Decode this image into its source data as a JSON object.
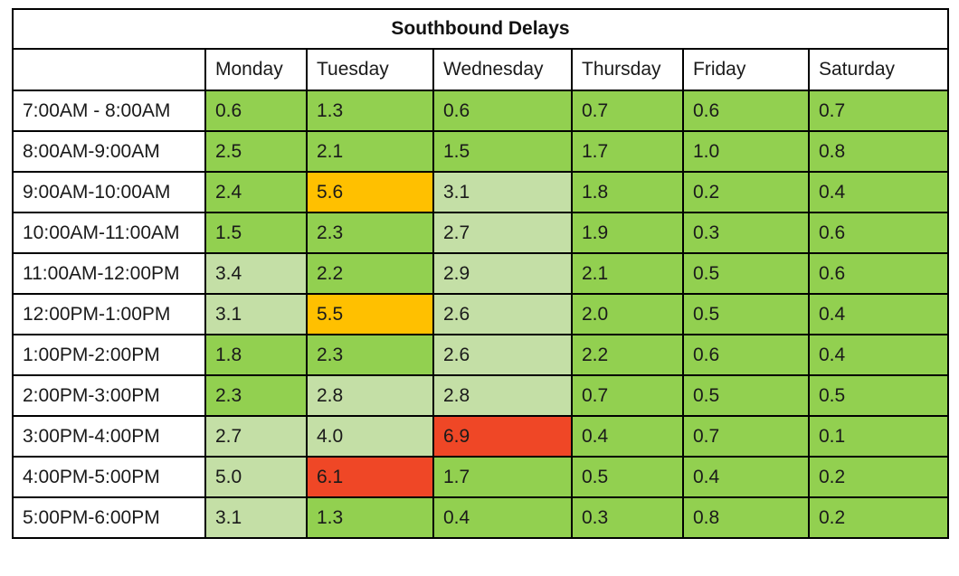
{
  "title": "Southbound Delays",
  "days": [
    "Monday",
    "Tuesday",
    "Wednesday",
    "Thursday",
    "Friday",
    "Saturday"
  ],
  "rows": [
    {
      "time": "7:00AM - 8:00AM",
      "values": [
        "0.6",
        "1.3",
        "0.6",
        "0.7",
        "0.6",
        "0.7"
      ]
    },
    {
      "time": "8:00AM-9:00AM",
      "values": [
        "2.5",
        "2.1",
        "1.5",
        "1.7",
        "1.0",
        "0.8"
      ]
    },
    {
      "time": "9:00AM-10:00AM",
      "values": [
        "2.4",
        "5.6",
        "3.1",
        "1.8",
        "0.2",
        "0.4"
      ]
    },
    {
      "time": "10:00AM-11:00AM",
      "values": [
        "1.5",
        "2.3",
        "2.7",
        "1.9",
        "0.3",
        "0.6"
      ]
    },
    {
      "time": "11:00AM-12:00PM",
      "values": [
        "3.4",
        "2.2",
        "2.9",
        "2.1",
        "0.5",
        "0.6"
      ]
    },
    {
      "time": "12:00PM-1:00PM",
      "values": [
        "3.1",
        "5.5",
        "2.6",
        "2.0",
        "0.5",
        "0.4"
      ]
    },
    {
      "time": "1:00PM-2:00PM",
      "values": [
        "1.8",
        "2.3",
        "2.6",
        "2.2",
        "0.6",
        "0.4"
      ]
    },
    {
      "time": "2:00PM-3:00PM",
      "values": [
        "2.3",
        "2.8",
        "2.8",
        "0.7",
        "0.5",
        "0.5"
      ]
    },
    {
      "time": "3:00PM-4:00PM",
      "values": [
        "2.7",
        "4.0",
        "6.9",
        "0.4",
        "0.7",
        "0.1"
      ]
    },
    {
      "time": "4:00PM-5:00PM",
      "values": [
        "5.0",
        "6.1",
        "1.7",
        "0.5",
        "0.4",
        "0.2"
      ]
    },
    {
      "time": "5:00PM-6:00PM",
      "values": [
        "3.1",
        "1.3",
        "0.4",
        "0.3",
        "0.8",
        "0.2"
      ]
    }
  ],
  "colors": {
    "low": "#92d050",
    "medium": "#c4dfa6",
    "high": "#ffc000",
    "severe": "#ef4726"
  }
}
